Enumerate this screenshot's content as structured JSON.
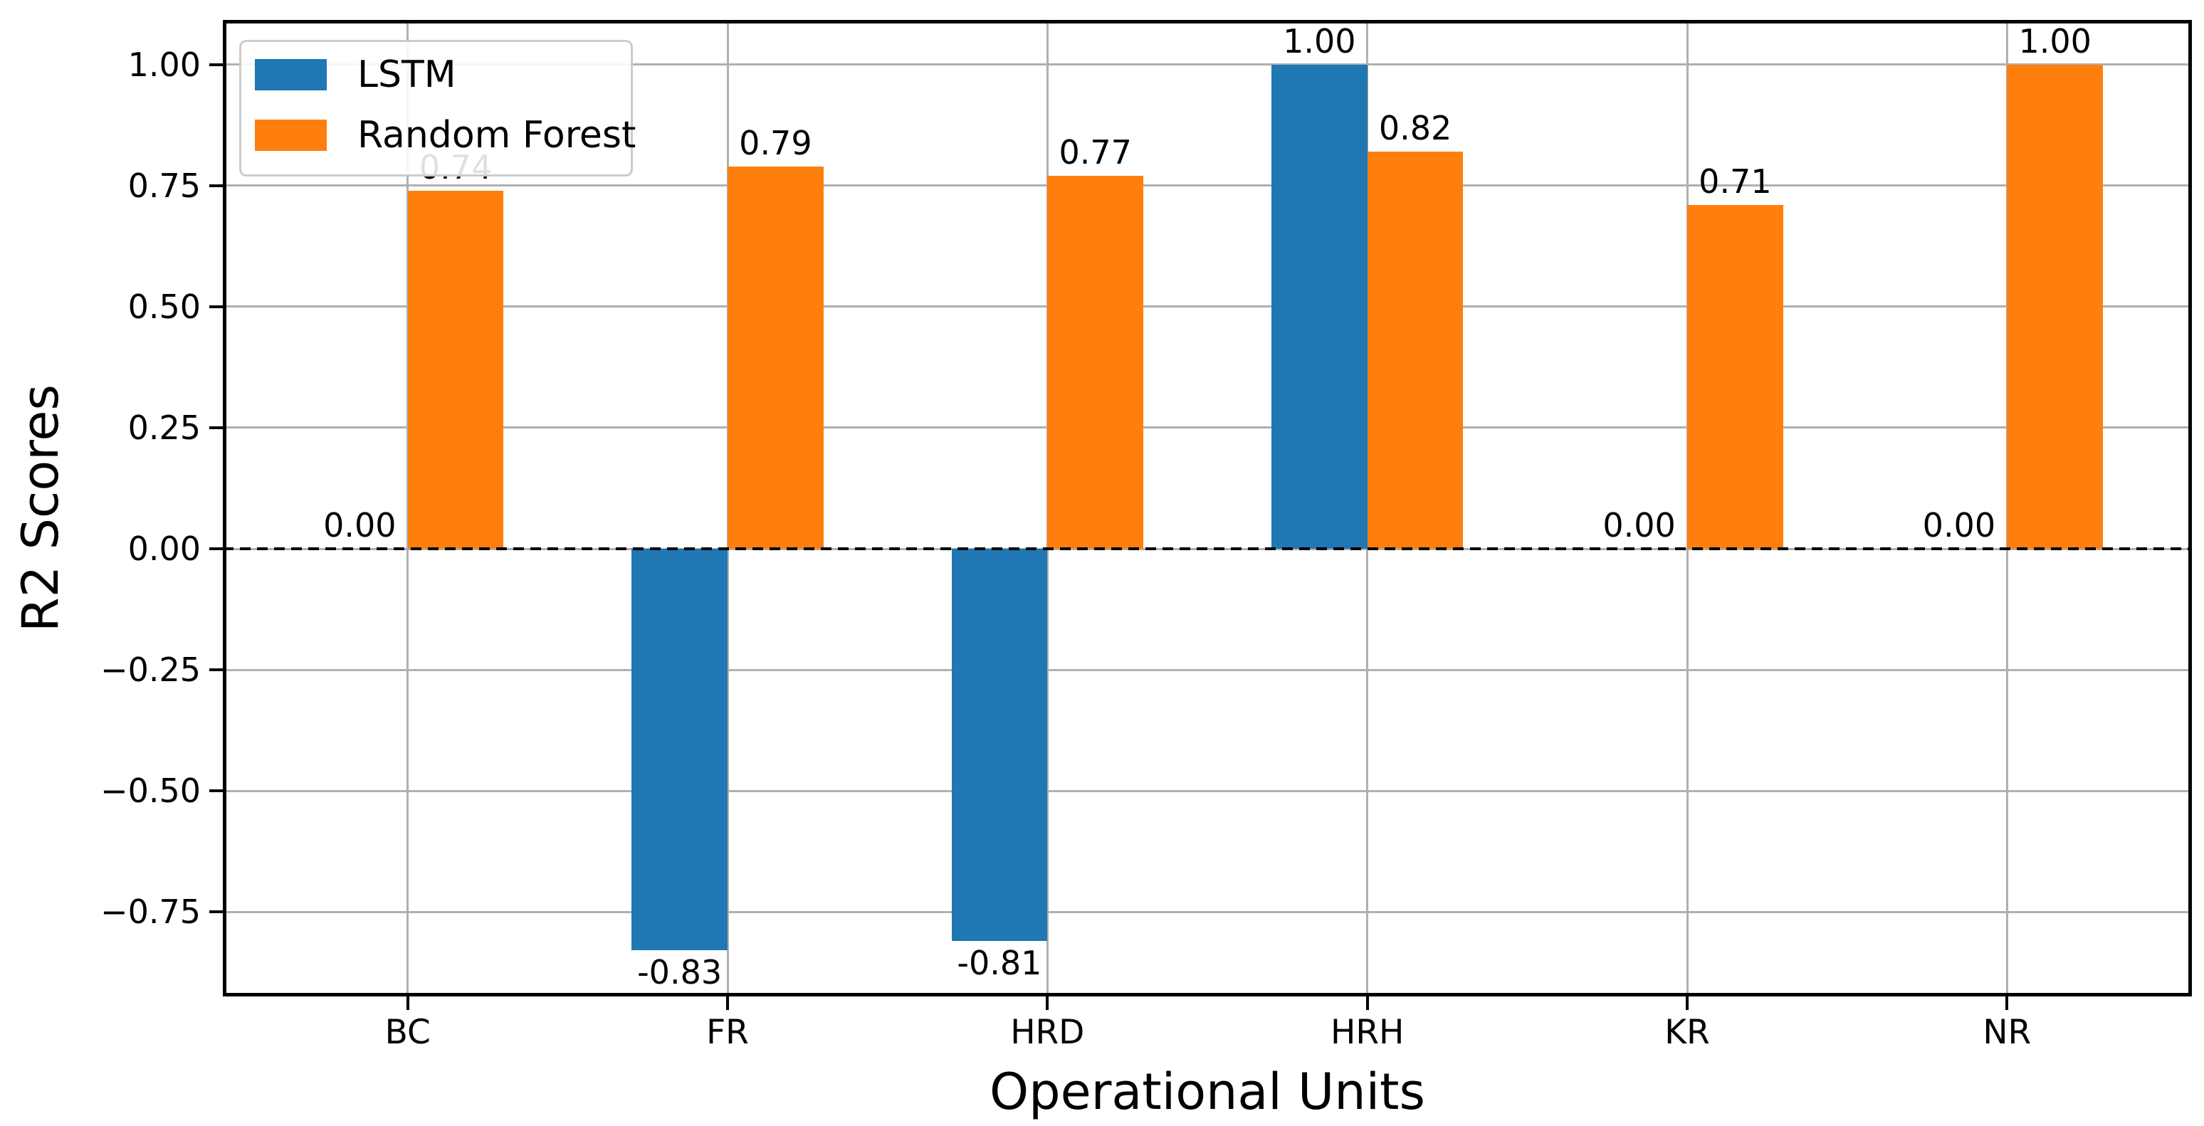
{
  "chart_data": {
    "type": "bar",
    "title": "",
    "xlabel": "Operational Units",
    "ylabel": "R2 Scores",
    "categories": [
      "BC",
      "FR",
      "HRD",
      "HRH",
      "KR",
      "NR"
    ],
    "series": [
      {
        "name": "LSTM",
        "color": "#1f77b4",
        "values": [
          0.0,
          -0.83,
          -0.81,
          1.0,
          0.0,
          0.0
        ],
        "labels": [
          "0.00",
          "-0.83",
          "-0.81",
          "1.00",
          "0.00",
          "0.00"
        ]
      },
      {
        "name": "Random Forest",
        "color": "#ff7f0e",
        "values": [
          0.74,
          0.79,
          0.77,
          0.82,
          0.71,
          1.0
        ],
        "labels": [
          "0.74",
          "0.79",
          "0.77",
          "0.82",
          "0.71",
          "1.00"
        ]
      }
    ],
    "yticks": [
      1.0,
      0.75,
      0.5,
      0.25,
      0.0,
      -0.25,
      -0.5,
      -0.75
    ],
    "ytick_labels": [
      "1.00",
      "0.75",
      "0.50",
      "0.25",
      "0.00",
      "−0.25",
      "−0.50",
      "−0.75"
    ],
    "ylim": [
      -0.925,
      1.0925
    ],
    "xlim": [
      -0.578,
      5.578
    ],
    "bar_width": 0.3,
    "group_offsets": [
      -0.15,
      0.15
    ],
    "grid": true,
    "grid_color": "#b0b0b0",
    "zero_line": "dashed",
    "legend_position": "upper left"
  }
}
